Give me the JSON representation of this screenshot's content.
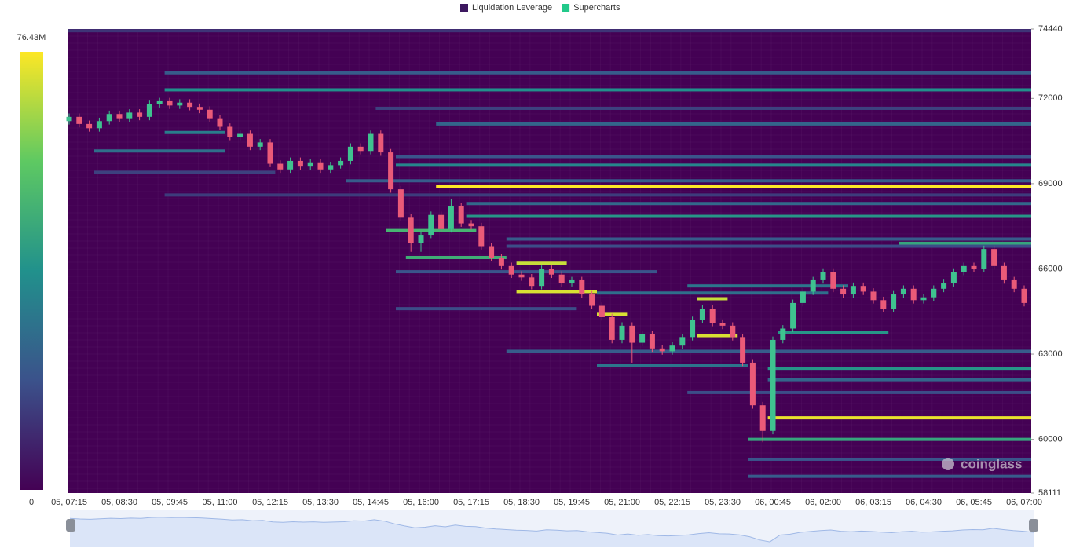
{
  "chart_data": {
    "type": "liquidation-heatmap",
    "legend": [
      {
        "name": "Liquidation Leverage",
        "color": "#3d1860"
      },
      {
        "name": "Supercharts",
        "color": "#22c98a"
      }
    ],
    "colorbar": {
      "min": {
        "value": 0,
        "label": "0"
      },
      "max": {
        "value": 76.43,
        "label": "76.43M"
      },
      "colors": [
        "#440154",
        "#3b528b",
        "#21918c",
        "#5ec962",
        "#fde725"
      ]
    },
    "watermark": "coinglass",
    "categories": [
      "05, 07:15",
      null,
      null,
      null,
      null,
      "05, 08:30",
      null,
      null,
      null,
      null,
      "05, 09:45",
      null,
      null,
      null,
      null,
      "05, 11:00",
      null,
      null,
      null,
      null,
      "05, 12:15",
      null,
      null,
      null,
      null,
      "05, 13:30",
      null,
      null,
      null,
      null,
      "05, 14:45",
      null,
      null,
      null,
      null,
      "05, 16:00",
      null,
      null,
      null,
      null,
      "05, 17:15",
      null,
      null,
      null,
      null,
      "05, 18:30",
      null,
      null,
      null,
      null,
      "05, 19:45",
      null,
      null,
      null,
      null,
      "05, 21:00",
      null,
      null,
      null,
      null,
      "05, 22:15",
      null,
      null,
      null,
      null,
      "05, 23:30",
      null,
      null,
      null,
      null,
      "06, 00:45",
      null,
      null,
      null,
      null,
      "06, 02:00",
      null,
      null,
      null,
      null,
      "06, 03:15",
      null,
      null,
      null,
      null,
      "06, 04:30",
      null,
      null,
      null,
      null,
      "06, 05:45",
      null,
      null,
      null,
      null,
      "06, 07:00"
    ],
    "open": [
      71200,
      71350,
      71100,
      70950,
      71200,
      71450,
      71300,
      71500,
      71350,
      71800,
      71900,
      71750,
      71850,
      71700,
      71600,
      71300,
      71000,
      70650,
      70750,
      70300,
      70450,
      69700,
      69500,
      69800,
      69600,
      69750,
      69500,
      69650,
      69800,
      70300,
      70150,
      70750,
      70100,
      68800,
      67800,
      66900,
      67200,
      67900,
      67400,
      68200,
      67600,
      67500,
      66800,
      66400,
      66100,
      65800,
      65700,
      65400,
      66000,
      65800,
      65500,
      65600,
      65100,
      64700,
      64300,
      63500,
      64000,
      63400,
      63700,
      63200,
      63100,
      63300,
      63600,
      64200,
      64600,
      64100,
      64000,
      63600,
      62700,
      61200,
      60300,
      63500,
      63900,
      64800,
      65200,
      65600,
      65900,
      65300,
      65100,
      65400,
      65200,
      64900,
      64600,
      65100,
      65300,
      64900,
      65000,
      65300,
      65500,
      65900,
      66100,
      66000,
      66700,
      66100,
      65600,
      65300
    ],
    "high": [
      71470,
      71470,
      71220,
      71320,
      71570,
      71570,
      71620,
      71620,
      71920,
      72020,
      72020,
      71970,
      71970,
      71820,
      71720,
      71420,
      71120,
      70870,
      70870,
      70570,
      70570,
      69820,
      69920,
      69920,
      69870,
      69870,
      69770,
      69920,
      70420,
      70420,
      70870,
      70870,
      70220,
      68920,
      67920,
      67320,
      68020,
      68020,
      68450,
      68320,
      67720,
      67620,
      66920,
      66520,
      66220,
      65920,
      65820,
      66120,
      66120,
      65920,
      65720,
      65720,
      65220,
      64820,
      64420,
      64120,
      64120,
      63820,
      63820,
      63320,
      63420,
      63720,
      64320,
      64720,
      64720,
      64220,
      64120,
      63720,
      62820,
      61320,
      63620,
      64020,
      64920,
      65320,
      65720,
      66020,
      66020,
      65420,
      65520,
      65520,
      65320,
      65020,
      65220,
      65420,
      65420,
      65120,
      65420,
      65620,
      66020,
      66220,
      66220,
      66820,
      66820,
      66220,
      65720,
      65420
    ],
    "low": [
      71080,
      70980,
      70830,
      70830,
      71080,
      71180,
      71180,
      71230,
      71230,
      71680,
      71630,
      71630,
      71580,
      71480,
      71180,
      70880,
      70530,
      70530,
      70180,
      70180,
      69580,
      69380,
      69380,
      69480,
      69480,
      69380,
      69380,
      69530,
      69680,
      70030,
      70030,
      69980,
      68680,
      67680,
      66600,
      66600,
      67080,
      67280,
      67280,
      67480,
      67380,
      66680,
      66280,
      65980,
      65680,
      65580,
      65280,
      65280,
      65680,
      65380,
      65380,
      64980,
      64580,
      64180,
      63380,
      63380,
      62700,
      63280,
      63080,
      62980,
      62980,
      63180,
      63480,
      64080,
      63980,
      63880,
      63480,
      62580,
      61080,
      59900,
      60180,
      63380,
      63780,
      64680,
      65080,
      65480,
      65180,
      64980,
      64980,
      65080,
      64780,
      64480,
      64480,
      64980,
      64780,
      64780,
      64880,
      65180,
      65380,
      65780,
      65880,
      65880,
      65980,
      65480,
      65180,
      64680
    ],
    "close": [
      71350,
      71100,
      70950,
      71200,
      71450,
      71300,
      71500,
      71350,
      71800,
      71900,
      71750,
      71850,
      71700,
      71600,
      71300,
      71000,
      70650,
      70750,
      70300,
      70450,
      69700,
      69500,
      69800,
      69600,
      69750,
      69500,
      69650,
      69800,
      70300,
      70150,
      70750,
      70100,
      68800,
      67800,
      66900,
      67200,
      67900,
      67400,
      68200,
      67600,
      67500,
      66800,
      66400,
      66100,
      65800,
      65700,
      65400,
      66000,
      65800,
      65500,
      65600,
      65100,
      64700,
      64300,
      63500,
      64000,
      63400,
      63700,
      63200,
      63100,
      63300,
      63600,
      64200,
      64600,
      64100,
      64000,
      63600,
      62700,
      61200,
      60300,
      63500,
      63900,
      64800,
      65200,
      65600,
      65900,
      65300,
      65100,
      65400,
      65200,
      64900,
      64600,
      65100,
      65300,
      64900,
      65000,
      65300,
      65500,
      65900,
      66100,
      66000,
      66700,
      66100,
      65600,
      65300,
      64800
    ],
    "up_color": "#3fc28f",
    "down_color": "#ea5a78",
    "levels": [
      {
        "price": 74380,
        "start": 0,
        "end": 95,
        "value": 12
      },
      {
        "price": 72900,
        "start": 10,
        "end": 95,
        "value": 22
      },
      {
        "price": 72300,
        "start": 10,
        "end": 95,
        "value": 38
      },
      {
        "price": 71650,
        "start": 31,
        "end": 95,
        "value": 15
      },
      {
        "price": 71100,
        "start": 37,
        "end": 95,
        "value": 25
      },
      {
        "price": 70800,
        "start": 10,
        "end": 15,
        "value": 32
      },
      {
        "price": 70150,
        "start": 3,
        "end": 15,
        "value": 28
      },
      {
        "price": 69950,
        "start": 33,
        "end": 95,
        "value": 20
      },
      {
        "price": 69650,
        "start": 33,
        "end": 95,
        "value": 35
      },
      {
        "price": 69400,
        "start": 3,
        "end": 20,
        "value": 15
      },
      {
        "price": 69100,
        "start": 28,
        "end": 95,
        "value": 22
      },
      {
        "price": 68900,
        "start": 37,
        "end": 95,
        "value": 76.43
      },
      {
        "price": 68600,
        "start": 10,
        "end": 95,
        "value": 14
      },
      {
        "price": 68300,
        "start": 40,
        "end": 95,
        "value": 26
      },
      {
        "price": 67850,
        "start": 40,
        "end": 95,
        "value": 40
      },
      {
        "price": 67350,
        "start": 32,
        "end": 40,
        "value": 50
      },
      {
        "price": 67050,
        "start": 44,
        "end": 95,
        "value": 22
      },
      {
        "price": 66900,
        "start": 83,
        "end": 95,
        "value": 45
      },
      {
        "price": 66800,
        "start": 44,
        "end": 95,
        "value": 18
      },
      {
        "price": 66400,
        "start": 34,
        "end": 43,
        "value": 48
      },
      {
        "price": 66200,
        "start": 45,
        "end": 49,
        "value": 70
      },
      {
        "price": 65900,
        "start": 33,
        "end": 58,
        "value": 20
      },
      {
        "price": 65400,
        "start": 62,
        "end": 77,
        "value": 30
      },
      {
        "price": 65200,
        "start": 45,
        "end": 52,
        "value": 72
      },
      {
        "price": 65150,
        "start": 53,
        "end": 75,
        "value": 28
      },
      {
        "price": 64950,
        "start": 63,
        "end": 65,
        "value": 70
      },
      {
        "price": 64600,
        "start": 33,
        "end": 50,
        "value": 18
      },
      {
        "price": 64400,
        "start": 53,
        "end": 55,
        "value": 72
      },
      {
        "price": 63750,
        "start": 71,
        "end": 81,
        "value": 40
      },
      {
        "price": 63650,
        "start": 63,
        "end": 66,
        "value": 72
      },
      {
        "price": 63100,
        "start": 44,
        "end": 95,
        "value": 22
      },
      {
        "price": 62600,
        "start": 53,
        "end": 67,
        "value": 30
      },
      {
        "price": 62500,
        "start": 70,
        "end": 95,
        "value": 40
      },
      {
        "price": 62100,
        "start": 70,
        "end": 95,
        "value": 25
      },
      {
        "price": 61650,
        "start": 62,
        "end": 95,
        "value": 18
      },
      {
        "price": 60760,
        "start": 70,
        "end": 95,
        "value": 74
      },
      {
        "price": 60000,
        "start": 68,
        "end": 95,
        "value": 45
      },
      {
        "price": 59300,
        "start": 68,
        "end": 95,
        "value": 20
      },
      {
        "price": 58700,
        "start": 68,
        "end": 95,
        "value": 22
      }
    ],
    "ylim": [
      58111,
      74440
    ],
    "yticks": [
      58111,
      60000,
      63000,
      66000,
      69000,
      72000,
      74440
    ]
  }
}
